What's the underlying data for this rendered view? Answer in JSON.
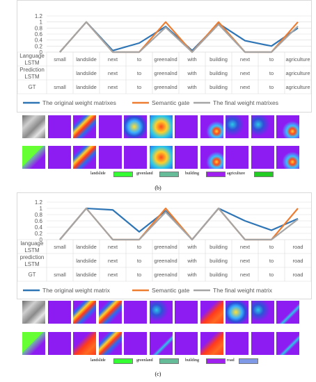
{
  "charts": [
    {
      "type": "line",
      "categories": [
        "small",
        "landslide",
        "next",
        "to",
        "greenalnd",
        "with",
        "building",
        "next",
        "to",
        "agriculture"
      ],
      "ylim": [
        0,
        1.2
      ],
      "yticks": [
        "0",
        "0.2",
        "0.4",
        "0.6",
        "0.8",
        "1",
        "1.2"
      ],
      "table": {
        "row_labels": [
          [
            "Language",
            "LSTM"
          ],
          [
            "Prediction",
            "LSTM"
          ],
          [
            "GT"
          ]
        ],
        "rows": [
          [
            "small",
            "landslide",
            "next",
            "to",
            "greenalnd",
            "with",
            "building",
            "next",
            "to",
            "agriculture"
          ],
          [
            "",
            "landslide",
            "next",
            "to",
            "greenalnd",
            "with",
            "building",
            "next",
            "to",
            "agriculture"
          ],
          [
            "small",
            "landslide",
            "next",
            "to",
            "greenalnd",
            "with",
            "building",
            "next",
            "to",
            "agriculture"
          ]
        ]
      },
      "series": [
        {
          "name": "The original weight matrixes",
          "color": "#2e75b6",
          "values": [
            0,
            1,
            0.05,
            0.3,
            0.85,
            0.05,
            0.95,
            0.38,
            0.2,
            0.8
          ]
        },
        {
          "name": "Semantic gate",
          "color": "#ed7d31",
          "values": [
            0,
            1,
            0,
            0,
            1,
            0,
            1,
            0,
            0,
            1
          ]
        },
        {
          "name": "The final weight matrixes",
          "color": "#a5a5a5",
          "values": [
            0,
            1,
            0,
            0,
            0.82,
            0,
            0.92,
            0,
            0,
            0.86
          ]
        }
      ]
    },
    {
      "type": "line",
      "categories": [
        "small",
        "landslide",
        "next",
        "to",
        "greenalnd",
        "with",
        "building",
        "next",
        "to",
        "road"
      ],
      "ylim": [
        0,
        1.2
      ],
      "yticks": [
        "0",
        "0.2",
        "0.4",
        "0.6",
        "0.8",
        "1",
        "1.2"
      ],
      "table": {
        "row_labels": [
          [
            "language",
            "LSTM"
          ],
          [
            "prediction",
            "LSTM"
          ],
          [
            "GT"
          ]
        ],
        "rows": [
          [
            "small",
            "landslide",
            "next",
            "to",
            "greenalnd",
            "with",
            "building",
            "next",
            "to",
            "road"
          ],
          [
            "",
            "landslide",
            "next",
            "to",
            "greenalnd",
            "with",
            "building",
            "next",
            "to",
            "road"
          ],
          [
            "small",
            "landslide",
            "next",
            "to",
            "greenalnd",
            "with",
            "building",
            "next",
            "to",
            "road"
          ]
        ]
      },
      "series": [
        {
          "name": "The original weight matrix",
          "color": "#2e75b6",
          "values": [
            0,
            1,
            0.95,
            0.25,
            0.92,
            0,
            1,
            0.6,
            0.3,
            0.67
          ]
        },
        {
          "name": "Semantic gate",
          "color": "#ed7d31",
          "values": [
            0,
            1,
            0,
            0,
            1,
            0,
            1,
            0,
            0,
            1
          ]
        },
        {
          "name": "The final weight matrix",
          "color": "#a5a5a5",
          "values": [
            0,
            1,
            0,
            0,
            0.88,
            0,
            1,
            0,
            0,
            0.65
          ]
        }
      ]
    }
  ],
  "legends": [
    [
      {
        "label": "landslide",
        "color": "#33ff33"
      },
      {
        "label": "greenland",
        "color": "#66bb99"
      },
      {
        "label": "building",
        "color": "#a020f0"
      },
      {
        "label": "agriculture",
        "color": "#22cc22"
      }
    ],
    [
      {
        "label": "landslide",
        "color": "#33ff33"
      },
      {
        "label": "greenland",
        "color": "#66bb99"
      },
      {
        "label": "building",
        "color": "#a020f0"
      },
      {
        "label": "road",
        "color": "#7f99e6"
      }
    ]
  ],
  "captions": [
    "(b)",
    "(c)"
  ],
  "strip_tiles": [
    [
      "photo-rock",
      "purple",
      "heat-diag",
      "purple",
      "heat-blob",
      "heat-full",
      "purple",
      "heat-spot",
      "heat-speck",
      "heat-speck",
      "heat-spot"
    ],
    [
      "seg-green",
      "purple",
      "heat-diag",
      "purple",
      "purple",
      "heat-full",
      "purple",
      "heat-spot",
      "purple",
      "purple",
      "heat-spot"
    ],
    [
      "photo-rock",
      "purple",
      "heat-diag",
      "heat-diag",
      "purple",
      "heat-speck",
      "purple",
      "heat-red",
      "heat-blob",
      "heat-speck",
      "heat-line"
    ],
    [
      "seg-green",
      "purple",
      "heat-red",
      "heat-diag",
      "purple",
      "heat-line",
      "purple",
      "heat-red",
      "purple",
      "purple",
      "heat-line"
    ]
  ]
}
